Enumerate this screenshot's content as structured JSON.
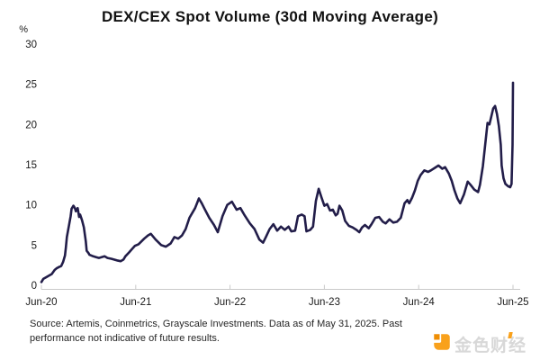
{
  "chart_data": {
    "type": "line",
    "title": "DEX/CEX Spot Volume (30d Moving Average)",
    "ylabel": "%",
    "ylim": [
      0,
      30
    ],
    "yticks": [
      0,
      5,
      10,
      15,
      20,
      25,
      30
    ],
    "grid": false,
    "legend": "none",
    "axis_color": "#c9c9c9",
    "tick_text_color": "#1a1a1a",
    "x_axis": {
      "tick_labels": [
        "Jun-20",
        "Jun-21",
        "Jun-22",
        "Jun-23",
        "Jun-24",
        "Jun-25"
      ],
      "range_years_since_jun_2020": [
        0,
        5
      ]
    },
    "series": [
      {
        "name": "DEX/CEX spot volume ratio (30d moving average)",
        "color": "#221d49",
        "points_t_years_vs_percent": [
          [
            0,
            0.4
          ],
          [
            0.02,
            0.8
          ],
          [
            0.05,
            1.0
          ],
          [
            0.08,
            1.2
          ],
          [
            0.11,
            1.4
          ],
          [
            0.14,
            1.9
          ],
          [
            0.16,
            2.1
          ],
          [
            0.19,
            2.3
          ],
          [
            0.21,
            2.4
          ],
          [
            0.23,
            2.9
          ],
          [
            0.25,
            3.7
          ],
          [
            0.26,
            4.7
          ],
          [
            0.27,
            6.0
          ],
          [
            0.29,
            7.3
          ],
          [
            0.31,
            8.6
          ],
          [
            0.32,
            9.5
          ],
          [
            0.34,
            9.9
          ],
          [
            0.355,
            9.6
          ],
          [
            0.365,
            9.2
          ],
          [
            0.385,
            9.6
          ],
          [
            0.4,
            8.5
          ],
          [
            0.41,
            8.8
          ],
          [
            0.43,
            8.1
          ],
          [
            0.45,
            7.2
          ],
          [
            0.47,
            5.5
          ],
          [
            0.48,
            4.3
          ],
          [
            0.5,
            4.0
          ],
          [
            0.51,
            3.8
          ],
          [
            0.55,
            3.6
          ],
          [
            0.58,
            3.5
          ],
          [
            0.61,
            3.4
          ],
          [
            0.67,
            3.6
          ],
          [
            0.7,
            3.4
          ],
          [
            0.74,
            3.3
          ],
          [
            0.77,
            3.2
          ],
          [
            0.8,
            3.1
          ],
          [
            0.84,
            3.0
          ],
          [
            0.87,
            3.2
          ],
          [
            0.89,
            3.6
          ],
          [
            0.93,
            4.1
          ],
          [
            0.96,
            4.5
          ],
          [
            0.99,
            4.9
          ],
          [
            1.03,
            5.1
          ],
          [
            1.09,
            5.8
          ],
          [
            1.13,
            6.2
          ],
          [
            1.16,
            6.4
          ],
          [
            1.21,
            5.7
          ],
          [
            1.27,
            5.0
          ],
          [
            1.32,
            4.8
          ],
          [
            1.37,
            5.2
          ],
          [
            1.41,
            6.0
          ],
          [
            1.45,
            5.8
          ],
          [
            1.49,
            6.2
          ],
          [
            1.53,
            7.0
          ],
          [
            1.57,
            8.4
          ],
          [
            1.63,
            9.6
          ],
          [
            1.67,
            10.8
          ],
          [
            1.7,
            10.2
          ],
          [
            1.73,
            9.5
          ],
          [
            1.78,
            8.4
          ],
          [
            1.83,
            7.5
          ],
          [
            1.87,
            6.6
          ],
          [
            1.92,
            8.6
          ],
          [
            1.97,
            10.0
          ],
          [
            2.02,
            10.4
          ],
          [
            2.07,
            9.4
          ],
          [
            2.11,
            9.6
          ],
          [
            2.15,
            8.8
          ],
          [
            2.21,
            7.7
          ],
          [
            2.26,
            7.0
          ],
          [
            2.31,
            5.7
          ],
          [
            2.35,
            5.3
          ],
          [
            2.38,
            6.0
          ],
          [
            2.42,
            7.0
          ],
          [
            2.46,
            7.6
          ],
          [
            2.5,
            6.8
          ],
          [
            2.54,
            7.3
          ],
          [
            2.58,
            6.9
          ],
          [
            2.62,
            7.3
          ],
          [
            2.65,
            6.7
          ],
          [
            2.69,
            6.8
          ],
          [
            2.72,
            8.6
          ],
          [
            2.76,
            8.8
          ],
          [
            2.79,
            8.6
          ],
          [
            2.81,
            6.7
          ],
          [
            2.85,
            6.9
          ],
          [
            2.88,
            7.3
          ],
          [
            2.91,
            10.5
          ],
          [
            2.94,
            12.0
          ],
          [
            2.97,
            10.9
          ],
          [
            3.0,
            9.9
          ],
          [
            3.03,
            10.1
          ],
          [
            3.06,
            9.3
          ],
          [
            3.09,
            9.4
          ],
          [
            3.12,
            8.7
          ],
          [
            3.14,
            8.9
          ],
          [
            3.16,
            9.9
          ],
          [
            3.19,
            9.3
          ],
          [
            3.22,
            8.0
          ],
          [
            3.26,
            7.4
          ],
          [
            3.3,
            7.2
          ],
          [
            3.34,
            6.9
          ],
          [
            3.37,
            6.6
          ],
          [
            3.4,
            7.2
          ],
          [
            3.43,
            7.5
          ],
          [
            3.47,
            7.1
          ],
          [
            3.5,
            7.6
          ],
          [
            3.54,
            8.4
          ],
          [
            3.58,
            8.5
          ],
          [
            3.62,
            7.9
          ],
          [
            3.65,
            7.7
          ],
          [
            3.69,
            8.2
          ],
          [
            3.73,
            7.8
          ],
          [
            3.77,
            7.9
          ],
          [
            3.81,
            8.4
          ],
          [
            3.85,
            10.2
          ],
          [
            3.88,
            10.6
          ],
          [
            3.9,
            10.2
          ],
          [
            3.93,
            10.9
          ],
          [
            3.96,
            11.8
          ],
          [
            3.99,
            13.0
          ],
          [
            4.02,
            13.7
          ],
          [
            4.06,
            14.3
          ],
          [
            4.1,
            14.1
          ],
          [
            4.13,
            14.3
          ],
          [
            4.17,
            14.6
          ],
          [
            4.21,
            14.9
          ],
          [
            4.25,
            14.5
          ],
          [
            4.28,
            14.7
          ],
          [
            4.32,
            13.9
          ],
          [
            4.35,
            13.0
          ],
          [
            4.38,
            11.8
          ],
          [
            4.41,
            10.8
          ],
          [
            4.44,
            10.2
          ],
          [
            4.48,
            11.3
          ],
          [
            4.52,
            12.9
          ],
          [
            4.55,
            12.5
          ],
          [
            4.59,
            11.9
          ],
          [
            4.63,
            11.6
          ],
          [
            4.65,
            12.5
          ],
          [
            4.68,
            14.8
          ],
          [
            4.71,
            18.0
          ],
          [
            4.73,
            20.2
          ],
          [
            4.75,
            20.0
          ],
          [
            4.77,
            21.0
          ],
          [
            4.79,
            22.0
          ],
          [
            4.81,
            22.3
          ],
          [
            4.83,
            21.3
          ],
          [
            4.85,
            19.8
          ],
          [
            4.87,
            17.5
          ],
          [
            4.88,
            14.9
          ],
          [
            4.9,
            13.3
          ],
          [
            4.92,
            12.6
          ],
          [
            4.95,
            12.3
          ],
          [
            4.97,
            12.2
          ],
          [
            4.985,
            12.6
          ],
          [
            4.995,
            17.5
          ],
          [
            5.0,
            25.2
          ]
        ]
      }
    ]
  },
  "footer": {
    "source_line1": "Source: Artemis, Coinmetrics, Grayscale Investments. Data as of May 31, 2025. Past",
    "source_line2": "performance not indicative of future results."
  },
  "logo": {
    "text": "金色财经",
    "icon": "jinse-finance-logo",
    "icon_color": "#f9a11b",
    "icon_color_dark": "#ef8e03",
    "text_color": "#d8d8d8"
  }
}
